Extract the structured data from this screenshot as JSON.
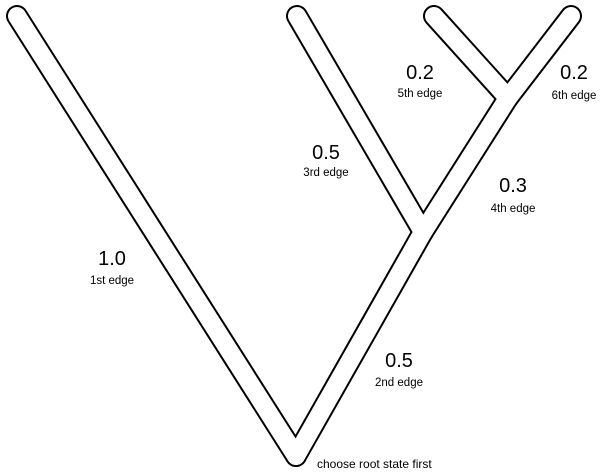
{
  "tree": {
    "edges": [
      {
        "id": "edge-1",
        "length": "1.0",
        "name": "1st edge"
      },
      {
        "id": "edge-2",
        "length": "0.5",
        "name": "2nd edge"
      },
      {
        "id": "edge-3",
        "length": "0.5",
        "name": "3rd edge"
      },
      {
        "id": "edge-4",
        "length": "0.3",
        "name": "4th edge"
      },
      {
        "id": "edge-5",
        "length": "0.2",
        "name": "5th edge"
      },
      {
        "id": "edge-6",
        "length": "0.2",
        "name": "6th edge"
      }
    ],
    "root_note": "choose root state first",
    "colors": {
      "outline": "#000000",
      "fill": "#ffffff",
      "text": "#000000"
    }
  }
}
